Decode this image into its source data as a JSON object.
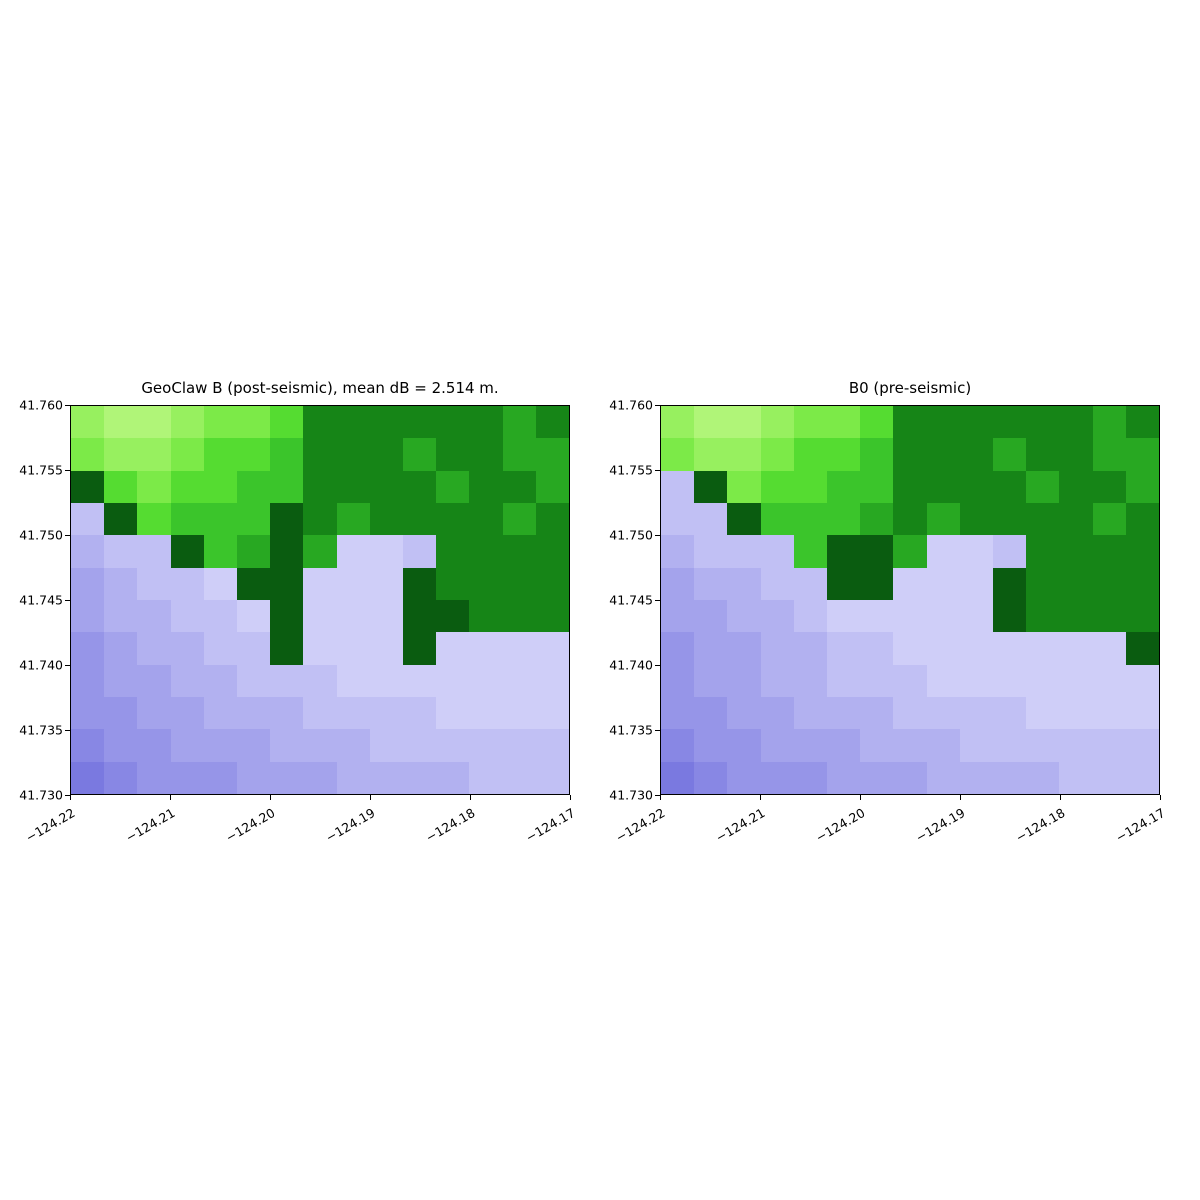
{
  "palette": {
    "G0": "#b0f578",
    "G1": "#97f05f",
    "G2": "#7cea48",
    "G3": "#55dc31",
    "G4": "#3bc52b",
    "G5": "#28a822",
    "G6": "#168517",
    "G7": "#0a5c10",
    "P0": "#cfcef8",
    "P1": "#c1c0f4",
    "P2": "#b2b1f0",
    "P3": "#a4a3ec",
    "P4": "#9695e8",
    "P5": "#8887e4",
    "P6": "#7a79e0"
  },
  "chart_data": [
    {
      "type": "heatmap",
      "title": "GeoClaw B (post-seismic), mean dB = 2.514 m.",
      "xlabel": "",
      "ylabel": "",
      "xlim": [
        -124.22,
        -124.17
      ],
      "ylim": [
        41.73,
        41.76
      ],
      "x_ticks": [
        "−124.22",
        "−124.21",
        "−124.20",
        "−124.19",
        "−124.18",
        "−124.17"
      ],
      "y_ticks": [
        "41.760",
        "41.755",
        "41.750",
        "41.745",
        "41.740",
        "41.735",
        "41.730"
      ],
      "n_cols": 15,
      "n_rows": 12,
      "grid": [
        "G1 G0 G0 G1 G2 G2 G3 G6 G6 G6 G6 G6 G6 G5 G6",
        "G2 G1 G1 G2 G3 G3 G4 G6 G6 G6 G5 G6 G6 G5 G5",
        "G7 G3 G2 G3 G3 G4 G4 G6 G6 G6 G6 G5 G6 G6 G5",
        "P1 G7 G3 G4 G4 G4 G7 G6 G5 G6 G6 G6 G6 G5 G6",
        "P2 P1 P1 G7 G4 G5 G7 G5 P0 P0 P1 G6 G6 G6 G6",
        "P3 P2 P1 P1 P0 G7 G7 P0 P0 P0 G7 G6 G6 G6 G6",
        "P3 P2 P2 P1 P1 P0 G7 P0 P0 P0 G7 G7 G6 G6 G6",
        "P4 P3 P2 P2 P1 P1 G7 P0 P0 P0 G7 P0 P0 P0 P0",
        "P4 P3 P3 P2 P2 P1 P1 P1 P0 P0 P0 P0 P0 P0 P0",
        "P4 P4 P3 P3 P2 P2 P2 P1 P1 P1 P1 P0 P0 P0 P0",
        "P5 P4 P4 P3 P3 P3 P2 P2 P2 P1 P1 P1 P1 P1 P1",
        "P6 P5 P4 P4 P4 P3 P3 P3 P2 P2 P2 P2 P1 P1 P1"
      ]
    },
    {
      "type": "heatmap",
      "title": "B0 (pre-seismic)",
      "xlabel": "",
      "ylabel": "",
      "xlim": [
        -124.22,
        -124.17
      ],
      "ylim": [
        41.73,
        41.76
      ],
      "x_ticks": [
        "−124.22",
        "−124.21",
        "−124.20",
        "−124.19",
        "−124.18",
        "−124.17"
      ],
      "y_ticks": [
        "41.760",
        "41.755",
        "41.750",
        "41.745",
        "41.740",
        "41.735",
        "41.730"
      ],
      "n_cols": 15,
      "n_rows": 12,
      "grid": [
        "G1 G0 G0 G1 G2 G2 G3 G6 G6 G6 G6 G6 G6 G5 G6",
        "G2 G1 G1 G2 G3 G3 G4 G6 G6 G6 G5 G6 G6 G5 G5",
        "P1 G7 G2 G3 G3 G4 G4 G6 G6 G6 G6 G5 G6 G6 G5",
        "P1 P1 G7 G4 G4 G4 G5 G6 G5 G6 G6 G6 G6 G5 G6",
        "P2 P1 P1 P1 G4 G7 G7 G5 P0 P0 P1 G6 G6 G6 G6",
        "P3 P2 P2 P1 P1 G7 G7 P0 P0 P0 G7 G6 G6 G6 G6",
        "P3 P3 P2 P2 P1 P0 P0 P0 P0 P0 G7 G6 G6 G6 G6",
        "P4 P3 P3 P2 P2 P1 P1 P0 P0 P0 P0 P0 P0 P0 G7",
        "P4 P3 P3 P2 P2 P1 P1 P1 P0 P0 P0 P0 P0 P0 P0",
        "P4 P4 P3 P3 P2 P2 P2 P1 P1 P1 P1 P0 P0 P0 P0",
        "P5 P4 P4 P3 P3 P3 P2 P2 P2 P1 P1 P1 P1 P1 P1",
        "P6 P5 P4 P4 P4 P3 P3 P3 P2 P2 P2 P2 P1 P1 P1"
      ]
    }
  ]
}
